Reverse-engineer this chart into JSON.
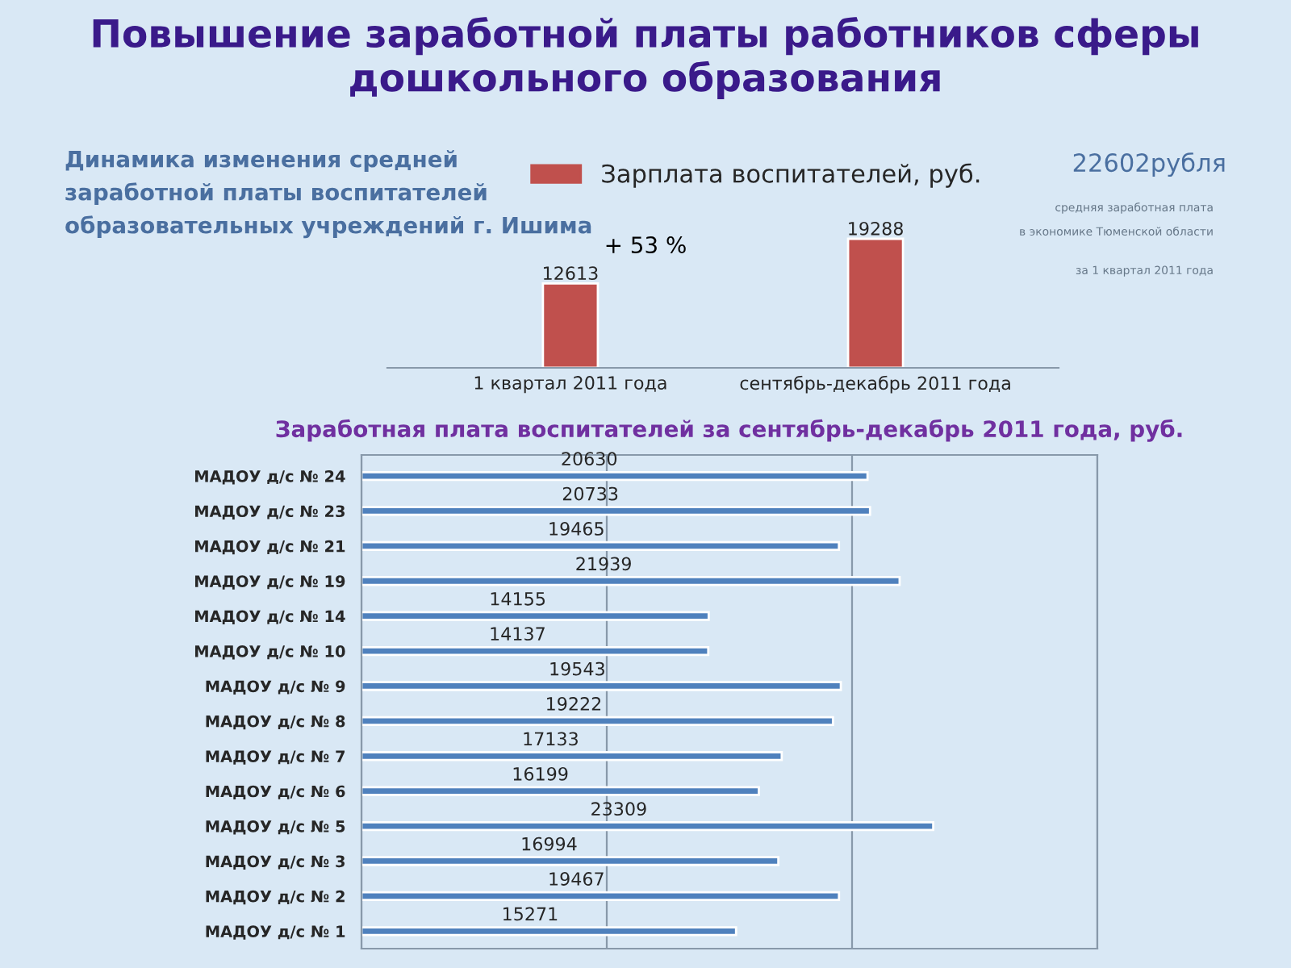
{
  "chart_data": [
    {
      "type": "bar",
      "title": "Повышение заработной платы работников сферы дошкольного образования",
      "subtitle": "Динамика изменения средней заработной платы воспитателей образовательных учреждений г. Ишима",
      "categories": [
        "1 квартал 2011 года",
        "сентябрь-декабрь 2011 года"
      ],
      "series": [
        {
          "name": "Зарплата воспитателей, руб.",
          "color": "#c0504d",
          "values": [
            12613,
            19288
          ]
        }
      ],
      "data_labels": true,
      "legend": "top",
      "tick_labels": "x",
      "annotations": [
        "+ 53 %",
        "22602рубля",
        "средняя заработная плата",
        "в экономике Тюменской области",
        "за 1 квартал 2011 года"
      ]
    },
    {
      "type": "bar",
      "orientation": "horizontal",
      "title": "Заработная плата воспитателей за сентябрь-декабрь 2011 года, руб.",
      "categories": [
        "МАДОУ д/с № 24",
        "МАДОУ д/с № 23",
        "МАДОУ д/с № 21",
        "МАДОУ д/с № 19",
        "МАДОУ д/с № 14",
        "МАДОУ д/с № 10",
        "МАДОУ д/с № 9",
        "МАДОУ д/с № 8",
        "МАДОУ д/с № 7",
        "МАДОУ д/с № 6",
        "МАДОУ д/с № 5",
        "МАДОУ д/с № 3",
        "МАДОУ д/с № 2",
        "МАДОУ д/с № 1"
      ],
      "series": [
        {
          "color": "#4f81bd",
          "values": [
            20630,
            20733,
            19465,
            21939,
            14155,
            14137,
            19543,
            19222,
            17133,
            16199,
            23309,
            16994,
            19467,
            15271
          ]
        }
      ],
      "xlim": [
        0,
        30000
      ],
      "xticks": [
        {
          "value": 0,
          "label": null
        },
        {
          "value": 10000,
          "label": null
        },
        {
          "value": 20000,
          "label": null
        },
        {
          "value": 30000,
          "label": null
        }
      ],
      "grid": "x",
      "data_labels": true,
      "tick_labels": "y"
    }
  ]
}
